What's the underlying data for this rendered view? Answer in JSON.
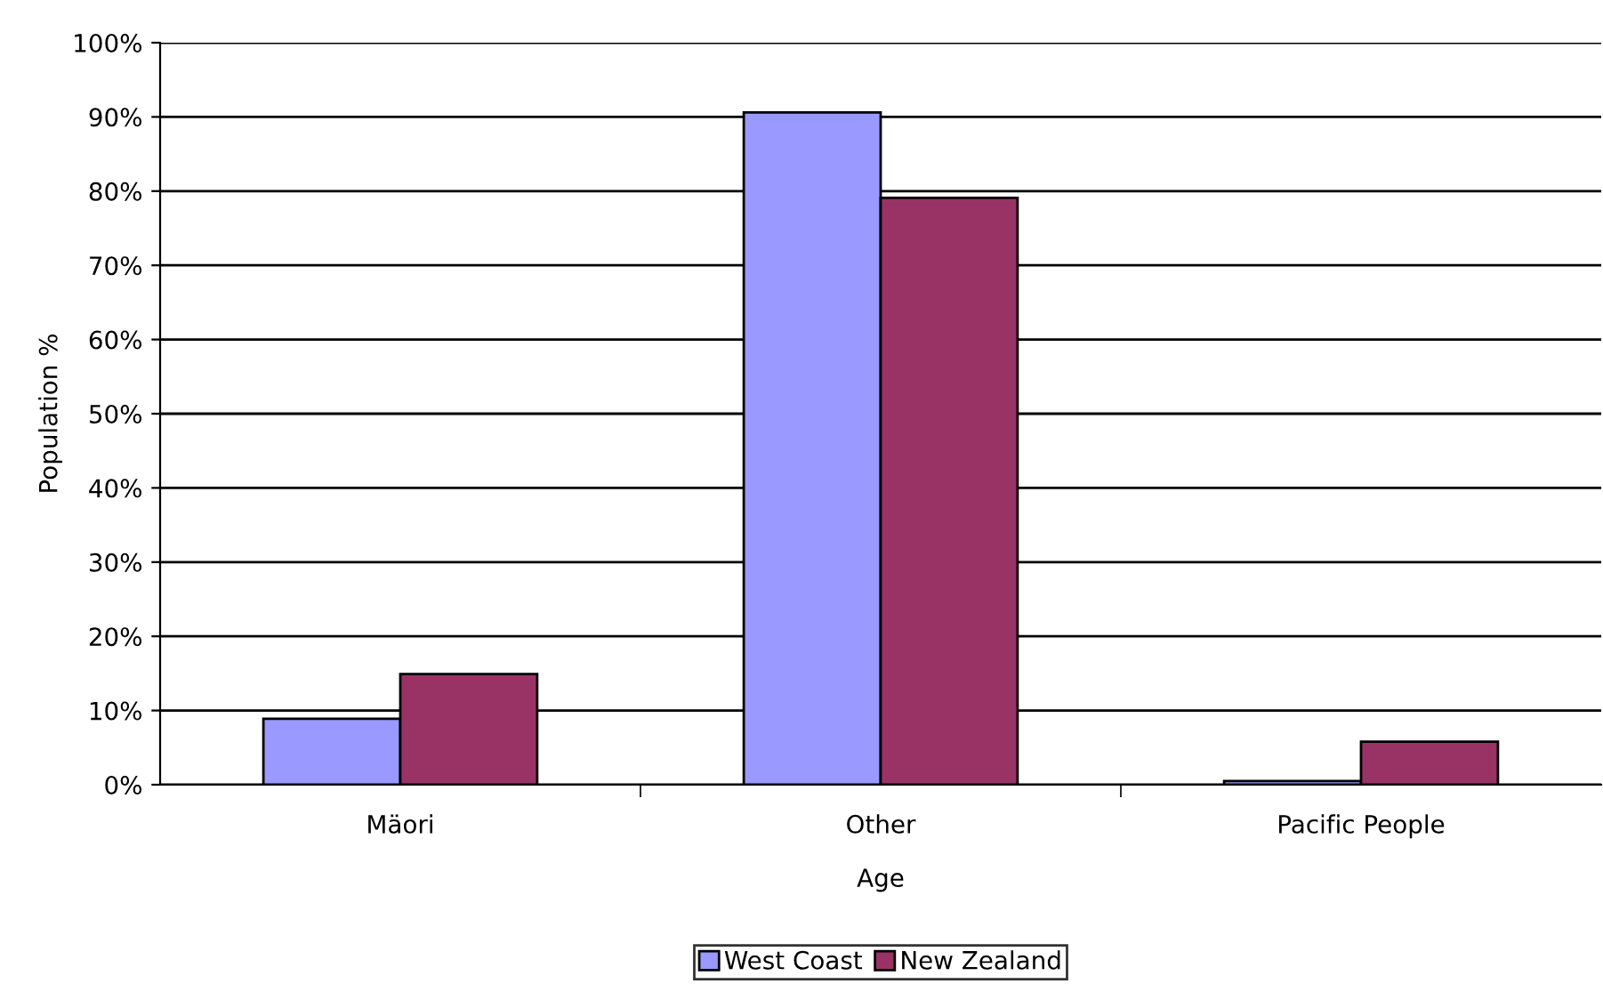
{
  "chart_data": {
    "type": "bar",
    "xlabel": "Age",
    "ylabel": "Population %",
    "categories": [
      "Mäori",
      "Other",
      "Pacific People"
    ],
    "series": [
      {
        "name": "West Coast",
        "color": "#9999ff",
        "values": [
          8.9,
          90.6,
          0.5
        ]
      },
      {
        "name": "New Zealand",
        "color": "#993366",
        "values": [
          14.9,
          79.1,
          5.8
        ]
      }
    ],
    "ylim": [
      0,
      100
    ],
    "yticks": [
      {
        "value": 0,
        "label": "0%"
      },
      {
        "value": 10,
        "label": "10%"
      },
      {
        "value": 20,
        "label": "20%"
      },
      {
        "value": 30,
        "label": "30%"
      },
      {
        "value": 40,
        "label": "40%"
      },
      {
        "value": 50,
        "label": "50%"
      },
      {
        "value": 60,
        "label": "60%"
      },
      {
        "value": 70,
        "label": "70%"
      },
      {
        "value": 80,
        "label": "80%"
      },
      {
        "value": 90,
        "label": "90%"
      },
      {
        "value": 100,
        "label": "100%"
      }
    ],
    "grid": "y",
    "legend": "bottom"
  }
}
